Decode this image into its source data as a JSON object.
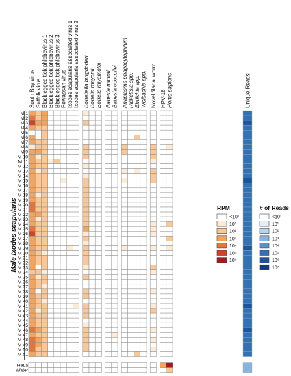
{
  "chart_data": {
    "type": "heatmap",
    "y_group_label": "Male Ixodes scapularis",
    "columns": [
      {
        "label": "South Bay virus",
        "italic": false
      },
      {
        "label": "Suffolk virus",
        "italic": false
      },
      {
        "label": "Blacklegged tick phlebovirus 1",
        "italic": false
      },
      {
        "label": "Blacklegged tick phlebovirus 2",
        "italic": false
      },
      {
        "label": "Blacklegged tick phlebovirus 3",
        "italic": false
      },
      {
        "label": "Powassan virus",
        "italic": false
      },
      {
        "label": "Ixodes scapularis associated virus 1",
        "italic": false
      },
      {
        "label": "Ixodes scapularis associated virus 2",
        "italic": false
      },
      {
        "label": "Borreliella burgdorferi",
        "italic": true
      },
      {
        "label": "Borrelia mayonii",
        "italic": true
      },
      {
        "label": "Borrelia miyamotoi",
        "italic": true
      },
      {
        "label": "Babesia microti",
        "italic": true
      },
      {
        "label": "Babesia odocoilei",
        "italic": true
      },
      {
        "label": "Anaplasma phagocytophilum",
        "italic": true
      },
      {
        "label": "Rickettsia spp.",
        "italic": true
      },
      {
        "label": "Ehrlichia spp.",
        "italic": true
      },
      {
        "label": "Wolbachia spp.",
        "italic": true
      },
      {
        "label": "Novel filarial worm",
        "italic": false
      },
      {
        "label": "HPV-18",
        "italic": false
      },
      {
        "label": "Homo sapiens",
        "italic": true
      }
    ],
    "column_groups": [
      [
        0,
        7
      ],
      [
        8,
        10
      ],
      [
        11,
        12
      ],
      [
        13,
        16
      ],
      [
        17,
        17
      ],
      [
        18,
        19
      ]
    ],
    "unique_reads_label": "Unique Reads",
    "rows": [
      "M 1",
      "M 2",
      "M 3",
      "M 4",
      "M 5",
      "M 6",
      "M 7",
      "M 8",
      "M 9",
      "M 10",
      "M 11",
      "M 12",
      "M 13",
      "M 14",
      "M 15",
      "M 16",
      "M 17",
      "M 18",
      "M 19",
      "M 20",
      "M 21",
      "M 22",
      "M 23",
      "M 24",
      "M 25",
      "M 26",
      "M 27",
      "M 28",
      "M 29",
      "M 30",
      "M 31",
      "M 32",
      "M 33",
      "M 34",
      "M 35",
      "M 36",
      "M 37",
      "M 38",
      "M 39",
      "M 40",
      "M 41",
      "M 42",
      "M 43",
      "M 44",
      "M 45",
      "M 46",
      "M 47",
      "M 48",
      "M 49",
      "M 50",
      "M 51"
    ],
    "control_rows": [
      "HeLa",
      "Water"
    ],
    "rpm_levels": [
      [
        3,
        2,
        3,
        0,
        0,
        0,
        0,
        0,
        1,
        0,
        0,
        0,
        0,
        0,
        0,
        0,
        0,
        0,
        0,
        0
      ],
      [
        4,
        2,
        3,
        0,
        0,
        0,
        0,
        0,
        0,
        0,
        0,
        0,
        0,
        0,
        0,
        0,
        0,
        0,
        0,
        0
      ],
      [
        5,
        3,
        3,
        0,
        0,
        0,
        0,
        0,
        2,
        0,
        0,
        0,
        0,
        0,
        0,
        0,
        0,
        0,
        0,
        0
      ],
      [
        3,
        2,
        2,
        0,
        0,
        0,
        0,
        0,
        0,
        0,
        0,
        0,
        0,
        0,
        0,
        0,
        0,
        0,
        0,
        0
      ],
      [
        0,
        0,
        2,
        0,
        0,
        0,
        0,
        0,
        0,
        0,
        0,
        0,
        0,
        0,
        0,
        0,
        0,
        0,
        0,
        0
      ],
      [
        3,
        0,
        2,
        0,
        0,
        0,
        0,
        0,
        0,
        0,
        0,
        0,
        0,
        0,
        0,
        2,
        0,
        0,
        0,
        0
      ],
      [
        3,
        2,
        2,
        0,
        0,
        0,
        0,
        0,
        0,
        0,
        0,
        0,
        0,
        0,
        0,
        0,
        0,
        0,
        0,
        0
      ],
      [
        1,
        2,
        2,
        0,
        0,
        0,
        0,
        0,
        2,
        0,
        0,
        0,
        0,
        2,
        0,
        0,
        0,
        2,
        0,
        1
      ],
      [
        3,
        3,
        2,
        0,
        0,
        0,
        0,
        0,
        2,
        0,
        0,
        0,
        0,
        2,
        0,
        0,
        0,
        2,
        0,
        0
      ],
      [
        3,
        1,
        2,
        0,
        0,
        0,
        0,
        0,
        2,
        0,
        0,
        0,
        0,
        0,
        0,
        0,
        0,
        2,
        0,
        0
      ],
      [
        3,
        2,
        2,
        1,
        2,
        0,
        0,
        0,
        0,
        0,
        0,
        0,
        0,
        0,
        0,
        0,
        0,
        1,
        0,
        0
      ],
      [
        3,
        2,
        2,
        0,
        0,
        0,
        0,
        0,
        1,
        0,
        0,
        0,
        0,
        0,
        0,
        0,
        0,
        0,
        0,
        0
      ],
      [
        3,
        1,
        2,
        0,
        0,
        0,
        0,
        0,
        0,
        0,
        0,
        0,
        0,
        1,
        0,
        1,
        0,
        2,
        0,
        0
      ],
      [
        3,
        2,
        2,
        0,
        0,
        0,
        0,
        0,
        1,
        0,
        0,
        0,
        0,
        0,
        0,
        0,
        0,
        2,
        0,
        0
      ],
      [
        3,
        2,
        2,
        0,
        0,
        1,
        0,
        0,
        2,
        0,
        0,
        0,
        0,
        1,
        0,
        0,
        0,
        2,
        0,
        0
      ],
      [
        3,
        2,
        2,
        0,
        0,
        0,
        0,
        0,
        2,
        0,
        0,
        0,
        0,
        0,
        0,
        0,
        0,
        0,
        0,
        0
      ],
      [
        3,
        2,
        2,
        0,
        0,
        0,
        0,
        0,
        2,
        0,
        0,
        0,
        0,
        0,
        0,
        0,
        0,
        0,
        0,
        0
      ],
      [
        3,
        1,
        2,
        0,
        0,
        0,
        0,
        0,
        2,
        0,
        0,
        0,
        0,
        0,
        0,
        0,
        0,
        0,
        0,
        0
      ],
      [
        3,
        2,
        2,
        0,
        0,
        0,
        0,
        0,
        2,
        0,
        0,
        0,
        0,
        0,
        0,
        0,
        0,
        0,
        0,
        0
      ],
      [
        4,
        2,
        2,
        0,
        0,
        0,
        0,
        0,
        2,
        0,
        0,
        0,
        0,
        0,
        0,
        0,
        0,
        0,
        0,
        0
      ],
      [
        4,
        2,
        2,
        0,
        0,
        0,
        0,
        0,
        2,
        0,
        0,
        0,
        0,
        0,
        0,
        0,
        0,
        0,
        0,
        0
      ],
      [
        3,
        3,
        2,
        0,
        0,
        0,
        0,
        0,
        2,
        0,
        0,
        0,
        0,
        0,
        0,
        0,
        0,
        0,
        0,
        0
      ],
      [
        3,
        1,
        2,
        0,
        0,
        0,
        0,
        0,
        2,
        0,
        0,
        0,
        0,
        0,
        0,
        0,
        0,
        0,
        0,
        0
      ],
      [
        3,
        2,
        2,
        0,
        0,
        0,
        0,
        0,
        2,
        0,
        0,
        0,
        0,
        0,
        0,
        0,
        0,
        1,
        0,
        2
      ],
      [
        4,
        2,
        2,
        0,
        0,
        0,
        0,
        0,
        3,
        0,
        0,
        0,
        0,
        0,
        0,
        0,
        0,
        1,
        0,
        0
      ],
      [
        5,
        2,
        2,
        0,
        0,
        0,
        0,
        0,
        1,
        0,
        0,
        0,
        0,
        0,
        0,
        0,
        0,
        1,
        0,
        0
      ],
      [
        3,
        2,
        2,
        0,
        0,
        0,
        0,
        0,
        2,
        0,
        0,
        0,
        0,
        0,
        0,
        0,
        0,
        0,
        0,
        2
      ],
      [
        3,
        2,
        2,
        0,
        0,
        0,
        0,
        0,
        1,
        0,
        0,
        0,
        0,
        0,
        0,
        0,
        0,
        0,
        0,
        0
      ],
      [
        3,
        2,
        2,
        0,
        0,
        0,
        1,
        0,
        2,
        0,
        0,
        0,
        0,
        1,
        0,
        0,
        0,
        1,
        0,
        1
      ],
      [
        3,
        2,
        1,
        0,
        0,
        0,
        0,
        0,
        2,
        0,
        0,
        0,
        0,
        0,
        0,
        0,
        0,
        0,
        0,
        0
      ],
      [
        3,
        2,
        2,
        0,
        0,
        0,
        0,
        0,
        2,
        0,
        0,
        0,
        0,
        0,
        0,
        0,
        0,
        0,
        0,
        0
      ],
      [
        3,
        2,
        2,
        0,
        0,
        0,
        0,
        0,
        2,
        0,
        0,
        0,
        0,
        0,
        0,
        0,
        0,
        0,
        0,
        0
      ],
      [
        3,
        0,
        2,
        0,
        0,
        0,
        0,
        0,
        1,
        0,
        0,
        0,
        0,
        0,
        0,
        0,
        0,
        2,
        0,
        0
      ],
      [
        2,
        2,
        1,
        0,
        0,
        0,
        0,
        0,
        0,
        0,
        0,
        0,
        0,
        0,
        0,
        0,
        0,
        1,
        0,
        0
      ],
      [
        3,
        1,
        2,
        0,
        0,
        0,
        0,
        0,
        2,
        0,
        0,
        0,
        0,
        0,
        0,
        0,
        0,
        0,
        0,
        0
      ],
      [
        3,
        2,
        2,
        0,
        0,
        0,
        0,
        0,
        0,
        0,
        0,
        0,
        0,
        0,
        0,
        0,
        0,
        0,
        0,
        0
      ],
      [
        3,
        2,
        1,
        0,
        0,
        0,
        0,
        0,
        0,
        0,
        0,
        0,
        0,
        0,
        0,
        0,
        0,
        0,
        0,
        0
      ],
      [
        3,
        0,
        2,
        0,
        0,
        0,
        0,
        0,
        2,
        0,
        0,
        0,
        0,
        0,
        0,
        0,
        0,
        1,
        0,
        0
      ],
      [
        3,
        2,
        2,
        0,
        0,
        0,
        0,
        0,
        2,
        0,
        0,
        0,
        0,
        0,
        0,
        0,
        0,
        0,
        0,
        0
      ],
      [
        3,
        2,
        1,
        0,
        0,
        0,
        0,
        0,
        0,
        0,
        0,
        0,
        0,
        0,
        0,
        0,
        0,
        0,
        0,
        0
      ],
      [
        3,
        2,
        2,
        0,
        0,
        0,
        0,
        1,
        2,
        0,
        0,
        0,
        0,
        0,
        0,
        0,
        0,
        1,
        0,
        0
      ],
      [
        3,
        1,
        2,
        0,
        0,
        0,
        0,
        0,
        2,
        0,
        0,
        0,
        0,
        0,
        0,
        0,
        0,
        2,
        0,
        0
      ],
      [
        3,
        2,
        2,
        0,
        0,
        0,
        0,
        0,
        2,
        0,
        0,
        0,
        0,
        0,
        0,
        0,
        0,
        0,
        0,
        0
      ],
      [
        3,
        2,
        2,
        0,
        0,
        0,
        0,
        0,
        0,
        0,
        0,
        0,
        0,
        0,
        0,
        0,
        0,
        0,
        0,
        0
      ],
      [
        3,
        2,
        2,
        0,
        0,
        0,
        0,
        0,
        1,
        0,
        0,
        0,
        0,
        0,
        0,
        0,
        0,
        0,
        0,
        0
      ],
      [
        4,
        3,
        2,
        0,
        0,
        0,
        0,
        0,
        2,
        0,
        0,
        0,
        0,
        0,
        0,
        0,
        0,
        1,
        0,
        0
      ],
      [
        3,
        2,
        2,
        0,
        0,
        0,
        0,
        0,
        2,
        0,
        0,
        0,
        1,
        0,
        0,
        0,
        0,
        0,
        0,
        0
      ],
      [
        4,
        3,
        2,
        0,
        0,
        0,
        0,
        0,
        2,
        0,
        0,
        0,
        0,
        0,
        0,
        0,
        0,
        1,
        0,
        0
      ],
      [
        4,
        3,
        2,
        0,
        0,
        0,
        0,
        0,
        2,
        0,
        0,
        0,
        0,
        0,
        0,
        0,
        0,
        0,
        0,
        0
      ],
      [
        4,
        2,
        2,
        0,
        0,
        0,
        0,
        0,
        2,
        0,
        0,
        0,
        0,
        0,
        0,
        0,
        0,
        1,
        0,
        0
      ],
      [
        3,
        2,
        2,
        0,
        0,
        0,
        0,
        0,
        0,
        0,
        0,
        0,
        0,
        0,
        0,
        2,
        0,
        0,
        0,
        0
      ]
    ],
    "control_rpm_levels": [
      [
        0,
        0,
        0,
        0,
        0,
        0,
        0,
        0,
        0,
        0,
        0,
        0,
        0,
        0,
        0,
        0,
        0,
        0,
        3,
        6
      ],
      [
        0,
        0,
        0,
        0,
        0,
        0,
        0,
        0,
        0,
        0,
        0,
        0,
        0,
        0,
        0,
        0,
        0,
        0,
        0,
        2
      ]
    ],
    "unique_reads_levels": [
      5,
      5,
      6,
      5,
      5,
      5,
      5,
      5,
      5,
      5,
      5,
      5,
      5,
      5,
      6,
      5,
      5,
      5,
      5,
      5,
      5,
      5,
      5,
      5,
      5,
      5,
      5,
      5,
      6,
      5,
      5,
      5,
      5,
      5,
      5,
      5,
      5,
      5,
      5,
      5,
      6,
      5,
      5,
      5,
      5,
      6,
      5,
      5,
      5,
      5,
      5
    ],
    "control_unique_reads_levels": [
      3,
      3
    ],
    "rpm_legend": {
      "title": "RPM",
      "labels": [
        "<10¹",
        "10¹",
        "10²",
        "10³",
        "10⁴",
        "10⁵",
        "10⁶"
      ],
      "colors": [
        "#ffffff",
        "#fdebd8",
        "#f9c89a",
        "#f2a560",
        "#e4763a",
        "#cd4427",
        "#a11c1c"
      ]
    },
    "reads_legend": {
      "title": "# of Reads",
      "labels": [
        "<10¹",
        "10¹",
        "10²",
        "10³",
        "10⁴",
        "10⁵",
        "10⁶",
        "10⁷"
      ],
      "colors": [
        "#ffffff",
        "#e3eef7",
        "#b9d4ea",
        "#89b4db",
        "#5b93c9",
        "#3471b4",
        "#1e539d",
        "#113a80"
      ]
    }
  }
}
